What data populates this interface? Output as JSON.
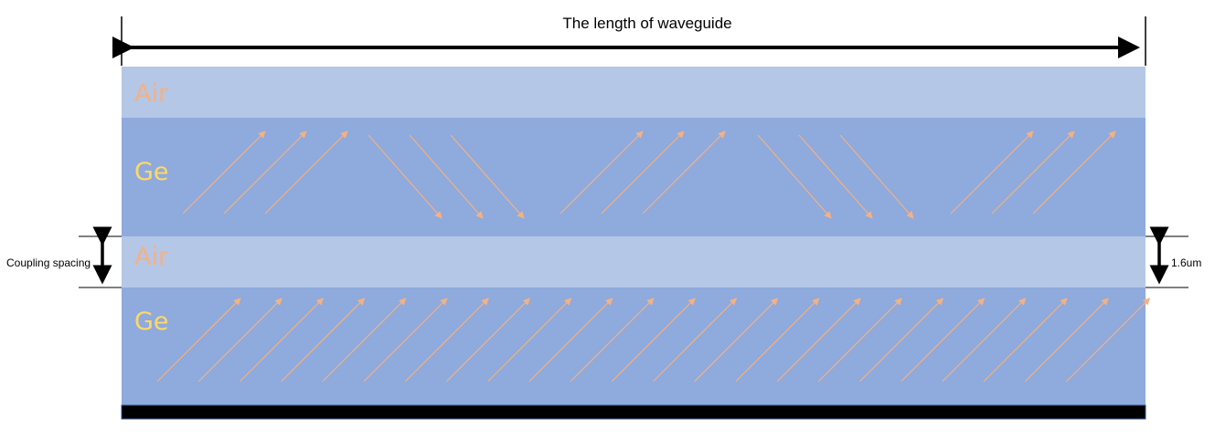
{
  "title": "The length of waveguide",
  "layers": [
    {
      "name": "air-top",
      "label": "Air",
      "fill": "#b4c7e7",
      "label_color": "#f4b183"
    },
    {
      "name": "ge-upper",
      "label": "Ge",
      "fill": "#8faadc",
      "label_color": "#ffd966"
    },
    {
      "name": "air-gap",
      "label": "Air",
      "fill": "#b4c7e7",
      "label_color": "#f4b183"
    },
    {
      "name": "ge-lower",
      "label": "Ge",
      "fill": "#8faadc",
      "label_color": "#ffd966"
    }
  ],
  "substrate_color": "#000000",
  "arrow_color": "#f4b183",
  "coupling_label": "Coupling spacing",
  "spacing_value": "1.6um"
}
